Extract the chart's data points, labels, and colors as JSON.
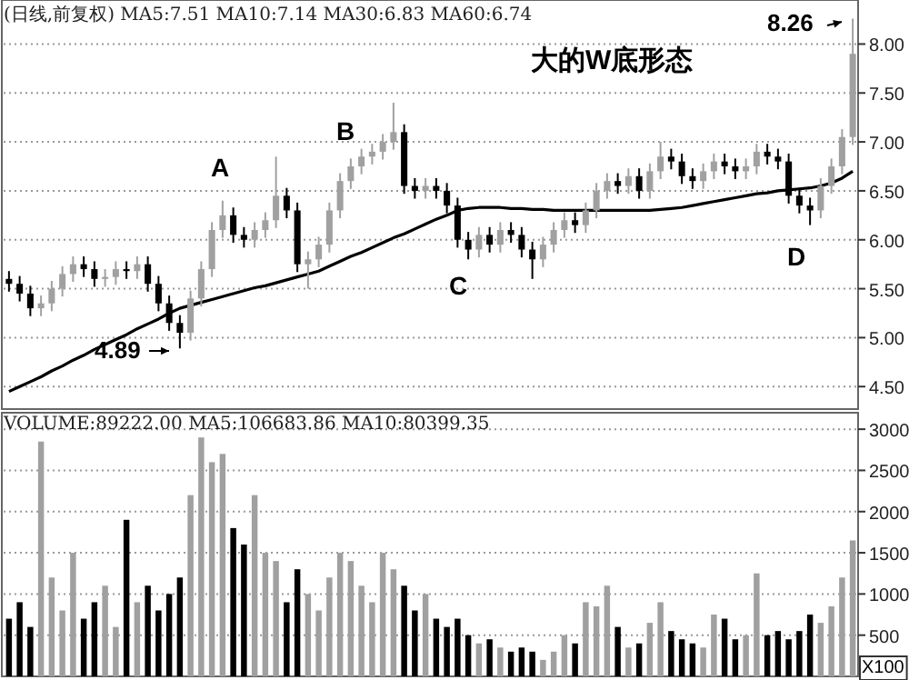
{
  "chart_data": [
    {
      "type": "candlestick",
      "title": "(日线,前复权) MA5:7.51 MA10:7.14 MA30:6.83 MA60:6.74",
      "categories": [
        null,
        null,
        null,
        null,
        null,
        null,
        null,
        null,
        null,
        null,
        null,
        null,
        null,
        null,
        null,
        null,
        null,
        null,
        null,
        null,
        null,
        null,
        null,
        null,
        null,
        null,
        null,
        null,
        null,
        null,
        null,
        null,
        null,
        null,
        null,
        null,
        null,
        null,
        null,
        null,
        null,
        null,
        null,
        null,
        null,
        null,
        null,
        null,
        null,
        null,
        null,
        null,
        null,
        null,
        null,
        null,
        null,
        null,
        null,
        null,
        null,
        null,
        null,
        null,
        null,
        null,
        null,
        null,
        null,
        null,
        null,
        null,
        null,
        null,
        null,
        null,
        null,
        null,
        null,
        null
      ],
      "ohlc": [
        [
          5.6,
          5.68,
          5.47,
          5.55
        ],
        [
          5.55,
          5.63,
          5.37,
          5.45
        ],
        [
          5.45,
          5.53,
          5.22,
          5.3
        ],
        [
          5.3,
          5.43,
          5.22,
          5.35
        ],
        [
          5.35,
          5.58,
          5.27,
          5.5
        ],
        [
          5.5,
          5.73,
          5.42,
          5.65
        ],
        [
          5.65,
          5.83,
          5.57,
          5.75
        ],
        [
          5.75,
          5.83,
          5.62,
          5.7
        ],
        [
          5.7,
          5.78,
          5.52,
          5.6
        ],
        [
          5.6,
          5.7,
          5.52,
          5.62
        ],
        [
          5.62,
          5.78,
          5.54,
          5.7
        ],
        [
          5.7,
          5.78,
          5.6,
          5.68
        ],
        [
          5.68,
          5.83,
          5.6,
          5.75
        ],
        [
          5.75,
          5.83,
          5.47,
          5.55
        ],
        [
          5.55,
          5.63,
          5.27,
          5.35
        ],
        [
          5.35,
          5.43,
          5.07,
          5.15
        ],
        [
          5.15,
          5.23,
          4.89,
          5.05
        ],
        [
          5.05,
          5.48,
          4.97,
          5.4
        ],
        [
          5.4,
          5.78,
          5.32,
          5.7
        ],
        [
          5.7,
          6.18,
          5.62,
          6.1
        ],
        [
          6.1,
          6.4,
          6.02,
          6.25
        ],
        [
          6.25,
          6.33,
          5.97,
          6.05
        ],
        [
          6.05,
          6.13,
          5.92,
          6.0
        ],
        [
          6.0,
          6.18,
          5.92,
          6.1
        ],
        [
          6.1,
          6.28,
          6.02,
          6.2
        ],
        [
          6.2,
          6.85,
          6.12,
          6.45
        ],
        [
          6.45,
          6.53,
          6.22,
          6.3
        ],
        [
          6.3,
          6.38,
          5.67,
          5.75
        ],
        [
          5.75,
          5.88,
          5.5,
          5.8
        ],
        [
          5.8,
          6.03,
          5.72,
          5.95
        ],
        [
          5.95,
          6.38,
          5.87,
          6.3
        ],
        [
          6.3,
          6.68,
          6.22,
          6.6
        ],
        [
          6.6,
          6.83,
          6.52,
          6.75
        ],
        [
          6.75,
          6.93,
          6.67,
          6.85
        ],
        [
          6.85,
          6.98,
          6.77,
          6.9
        ],
        [
          6.9,
          7.08,
          6.82,
          7.0
        ],
        [
          7.0,
          7.4,
          6.92,
          7.1
        ],
        [
          7.1,
          7.18,
          6.47,
          6.55
        ],
        [
          6.55,
          6.63,
          6.42,
          6.5
        ],
        [
          6.5,
          6.63,
          6.42,
          6.55
        ],
        [
          6.55,
          6.63,
          6.42,
          6.5
        ],
        [
          6.5,
          6.58,
          6.27,
          6.35
        ],
        [
          6.35,
          6.43,
          5.92,
          6.0
        ],
        [
          6.0,
          6.08,
          5.8,
          5.9
        ],
        [
          5.9,
          6.13,
          5.82,
          6.05
        ],
        [
          6.05,
          6.13,
          5.87,
          5.95
        ],
        [
          5.95,
          6.18,
          5.87,
          6.1
        ],
        [
          6.1,
          6.18,
          5.97,
          6.05
        ],
        [
          6.05,
          6.13,
          5.82,
          5.9
        ],
        [
          5.9,
          5.98,
          5.6,
          5.8
        ],
        [
          5.8,
          6.03,
          5.72,
          5.95
        ],
        [
          5.95,
          6.18,
          5.87,
          6.1
        ],
        [
          6.1,
          6.28,
          6.02,
          6.2
        ],
        [
          6.2,
          6.28,
          6.07,
          6.15
        ],
        [
          6.15,
          6.38,
          6.07,
          6.3
        ],
        [
          6.3,
          6.58,
          6.22,
          6.5
        ],
        [
          6.5,
          6.68,
          6.42,
          6.6
        ],
        [
          6.6,
          6.68,
          6.47,
          6.55
        ],
        [
          6.55,
          6.73,
          6.47,
          6.65
        ],
        [
          6.65,
          6.73,
          6.42,
          6.5
        ],
        [
          6.5,
          6.78,
          6.42,
          6.7
        ],
        [
          6.7,
          7.0,
          6.62,
          6.85
        ],
        [
          6.85,
          6.93,
          6.72,
          6.8
        ],
        [
          6.8,
          6.88,
          6.57,
          6.65
        ],
        [
          6.65,
          6.73,
          6.52,
          6.6
        ],
        [
          6.6,
          6.78,
          6.52,
          6.7
        ],
        [
          6.7,
          6.88,
          6.62,
          6.8
        ],
        [
          6.8,
          6.88,
          6.67,
          6.75
        ],
        [
          6.75,
          6.83,
          6.62,
          6.7
        ],
        [
          6.7,
          6.83,
          6.62,
          6.75
        ],
        [
          6.75,
          6.98,
          6.67,
          6.9
        ],
        [
          6.9,
          6.98,
          6.77,
          6.85
        ],
        [
          6.85,
          6.93,
          6.72,
          6.8
        ],
        [
          6.8,
          6.88,
          6.37,
          6.45
        ],
        [
          6.45,
          6.53,
          6.27,
          6.35
        ],
        [
          6.35,
          6.43,
          6.15,
          6.3
        ],
        [
          6.3,
          6.63,
          6.22,
          6.55
        ],
        [
          6.55,
          6.83,
          6.47,
          6.75
        ],
        [
          6.75,
          7.13,
          6.67,
          7.05
        ],
        [
          7.05,
          8.26,
          6.97,
          7.9
        ]
      ],
      "colors": [
        "#000000",
        "#000000",
        "#000000",
        "#a0a0a0",
        "#a0a0a0",
        "#a0a0a0",
        "#a0a0a0",
        "#000000",
        "#000000",
        "#a0a0a0",
        "#a0a0a0",
        "#000000",
        "#a0a0a0",
        "#000000",
        "#000000",
        "#000000",
        "#000000",
        "#a0a0a0",
        "#a0a0a0",
        "#a0a0a0",
        "#a0a0a0",
        "#000000",
        "#000000",
        "#a0a0a0",
        "#a0a0a0",
        "#a0a0a0",
        "#000000",
        "#000000",
        "#a0a0a0",
        "#a0a0a0",
        "#a0a0a0",
        "#a0a0a0",
        "#a0a0a0",
        "#a0a0a0",
        "#a0a0a0",
        "#a0a0a0",
        "#a0a0a0",
        "#000000",
        "#000000",
        "#a0a0a0",
        "#000000",
        "#000000",
        "#000000",
        "#000000",
        "#a0a0a0",
        "#000000",
        "#a0a0a0",
        "#000000",
        "#000000",
        "#000000",
        "#a0a0a0",
        "#a0a0a0",
        "#a0a0a0",
        "#000000",
        "#a0a0a0",
        "#a0a0a0",
        "#a0a0a0",
        "#000000",
        "#a0a0a0",
        "#000000",
        "#a0a0a0",
        "#a0a0a0",
        "#000000",
        "#000000",
        "#000000",
        "#a0a0a0",
        "#a0a0a0",
        "#000000",
        "#000000",
        "#a0a0a0",
        "#a0a0a0",
        "#000000",
        "#000000",
        "#000000",
        "#000000",
        "#000000",
        "#a0a0a0",
        "#a0a0a0",
        "#a0a0a0",
        "#a0a0a0"
      ],
      "series": [
        {
          "type": "line",
          "color": "#000000",
          "values": [
            4.45,
            4.5,
            4.55,
            4.6,
            4.66,
            4.71,
            4.77,
            4.82,
            4.88,
            4.93,
            4.98,
            5.03,
            5.09,
            5.14,
            5.19,
            5.25,
            5.3,
            5.33,
            5.36,
            5.39,
            5.42,
            5.45,
            5.48,
            5.51,
            5.53,
            5.56,
            5.59,
            5.62,
            5.65,
            5.68,
            5.73,
            5.78,
            5.83,
            5.87,
            5.92,
            5.97,
            6.02,
            6.06,
            6.11,
            6.16,
            6.21,
            6.25,
            6.3,
            6.32,
            6.33,
            6.33,
            6.33,
            6.32,
            6.32,
            6.31,
            6.31,
            6.3,
            6.3,
            6.3,
            6.3,
            6.3,
            6.3,
            6.3,
            6.3,
            6.3,
            6.3,
            6.31,
            6.32,
            6.33,
            6.35,
            6.37,
            6.39,
            6.41,
            6.43,
            6.45,
            6.47,
            6.48,
            6.5,
            6.51,
            6.52,
            6.53,
            6.55,
            6.58,
            6.63,
            6.7
          ]
        }
      ],
      "ylim": [
        4.27,
        8.45
      ],
      "yticks": [
        {
          "value": 4.5,
          "label": "4.50"
        },
        {
          "value": 5,
          "label": "5.00"
        },
        {
          "value": 5.5,
          "label": "5.50"
        },
        {
          "value": 6,
          "label": "6.00"
        },
        {
          "value": 6.5,
          "label": "6.50"
        },
        {
          "value": 7,
          "label": "7.00"
        },
        {
          "value": 7.5,
          "label": "7.50"
        },
        {
          "value": 8,
          "label": "8.00"
        }
      ],
      "grid": "y",
      "annotations": [
        "A",
        "B",
        "C",
        "D",
        "4.89",
        "8.26",
        "大的W底形态"
      ]
    },
    {
      "type": "bar",
      "title": "VOLUME:89222.00 MA5:106683.86 MA10:80399.35",
      "categories": [
        null,
        null,
        null,
        null,
        null,
        null,
        null,
        null,
        null,
        null,
        null,
        null,
        null,
        null,
        null,
        null,
        null,
        null,
        null,
        null,
        null,
        null,
        null,
        null,
        null,
        null,
        null,
        null,
        null,
        null,
        null,
        null,
        null,
        null,
        null,
        null,
        null,
        null,
        null,
        null,
        null,
        null,
        null,
        null,
        null,
        null,
        null,
        null,
        null,
        null,
        null,
        null,
        null,
        null,
        null,
        null,
        null,
        null,
        null,
        null,
        null,
        null,
        null,
        null,
        null,
        null,
        null,
        null,
        null,
        null,
        null,
        null,
        null,
        null,
        null,
        null,
        null,
        null,
        null,
        null
      ],
      "values": [
        700,
        900,
        600,
        2850,
        1200,
        800,
        1500,
        700,
        900,
        1100,
        600,
        1900,
        900,
        1100,
        800,
        1000,
        1200,
        2200,
        2900,
        2600,
        2700,
        1800,
        1600,
        2200,
        1500,
        1400,
        900,
        1300,
        1000,
        800,
        1200,
        1500,
        1400,
        1100,
        900,
        1500,
        1300,
        1100,
        800,
        1000,
        700,
        600,
        700,
        500,
        400,
        450,
        350,
        300,
        350,
        300,
        200,
        300,
        500,
        400,
        900,
        850,
        1100,
        600,
        350,
        400,
        650,
        900,
        550,
        450,
        400,
        350,
        750,
        700,
        450,
        500,
        1250,
        500,
        550,
        450,
        550,
        750,
        650,
        850,
        1200,
        1650
      ],
      "colors": [
        "#000000",
        "#000000",
        "#000000",
        "#a0a0a0",
        "#a0a0a0",
        "#a0a0a0",
        "#a0a0a0",
        "#000000",
        "#000000",
        "#a0a0a0",
        "#a0a0a0",
        "#000000",
        "#a0a0a0",
        "#000000",
        "#000000",
        "#000000",
        "#000000",
        "#a0a0a0",
        "#a0a0a0",
        "#a0a0a0",
        "#a0a0a0",
        "#000000",
        "#000000",
        "#a0a0a0",
        "#a0a0a0",
        "#a0a0a0",
        "#000000",
        "#000000",
        "#a0a0a0",
        "#a0a0a0",
        "#a0a0a0",
        "#a0a0a0",
        "#a0a0a0",
        "#a0a0a0",
        "#a0a0a0",
        "#a0a0a0",
        "#a0a0a0",
        "#000000",
        "#000000",
        "#a0a0a0",
        "#000000",
        "#000000",
        "#000000",
        "#000000",
        "#a0a0a0",
        "#000000",
        "#a0a0a0",
        "#000000",
        "#000000",
        "#000000",
        "#a0a0a0",
        "#a0a0a0",
        "#a0a0a0",
        "#000000",
        "#a0a0a0",
        "#a0a0a0",
        "#a0a0a0",
        "#000000",
        "#a0a0a0",
        "#000000",
        "#a0a0a0",
        "#a0a0a0",
        "#000000",
        "#000000",
        "#000000",
        "#a0a0a0",
        "#a0a0a0",
        "#000000",
        "#000000",
        "#a0a0a0",
        "#a0a0a0",
        "#000000",
        "#000000",
        "#000000",
        "#000000",
        "#000000",
        "#a0a0a0",
        "#a0a0a0",
        "#a0a0a0",
        "#a0a0a0"
      ],
      "ylim": [
        0,
        3200
      ],
      "yticks": [
        500,
        1000,
        1500,
        2000,
        2500,
        3000
      ],
      "grid": "y",
      "annotations": [
        "X100"
      ]
    }
  ]
}
